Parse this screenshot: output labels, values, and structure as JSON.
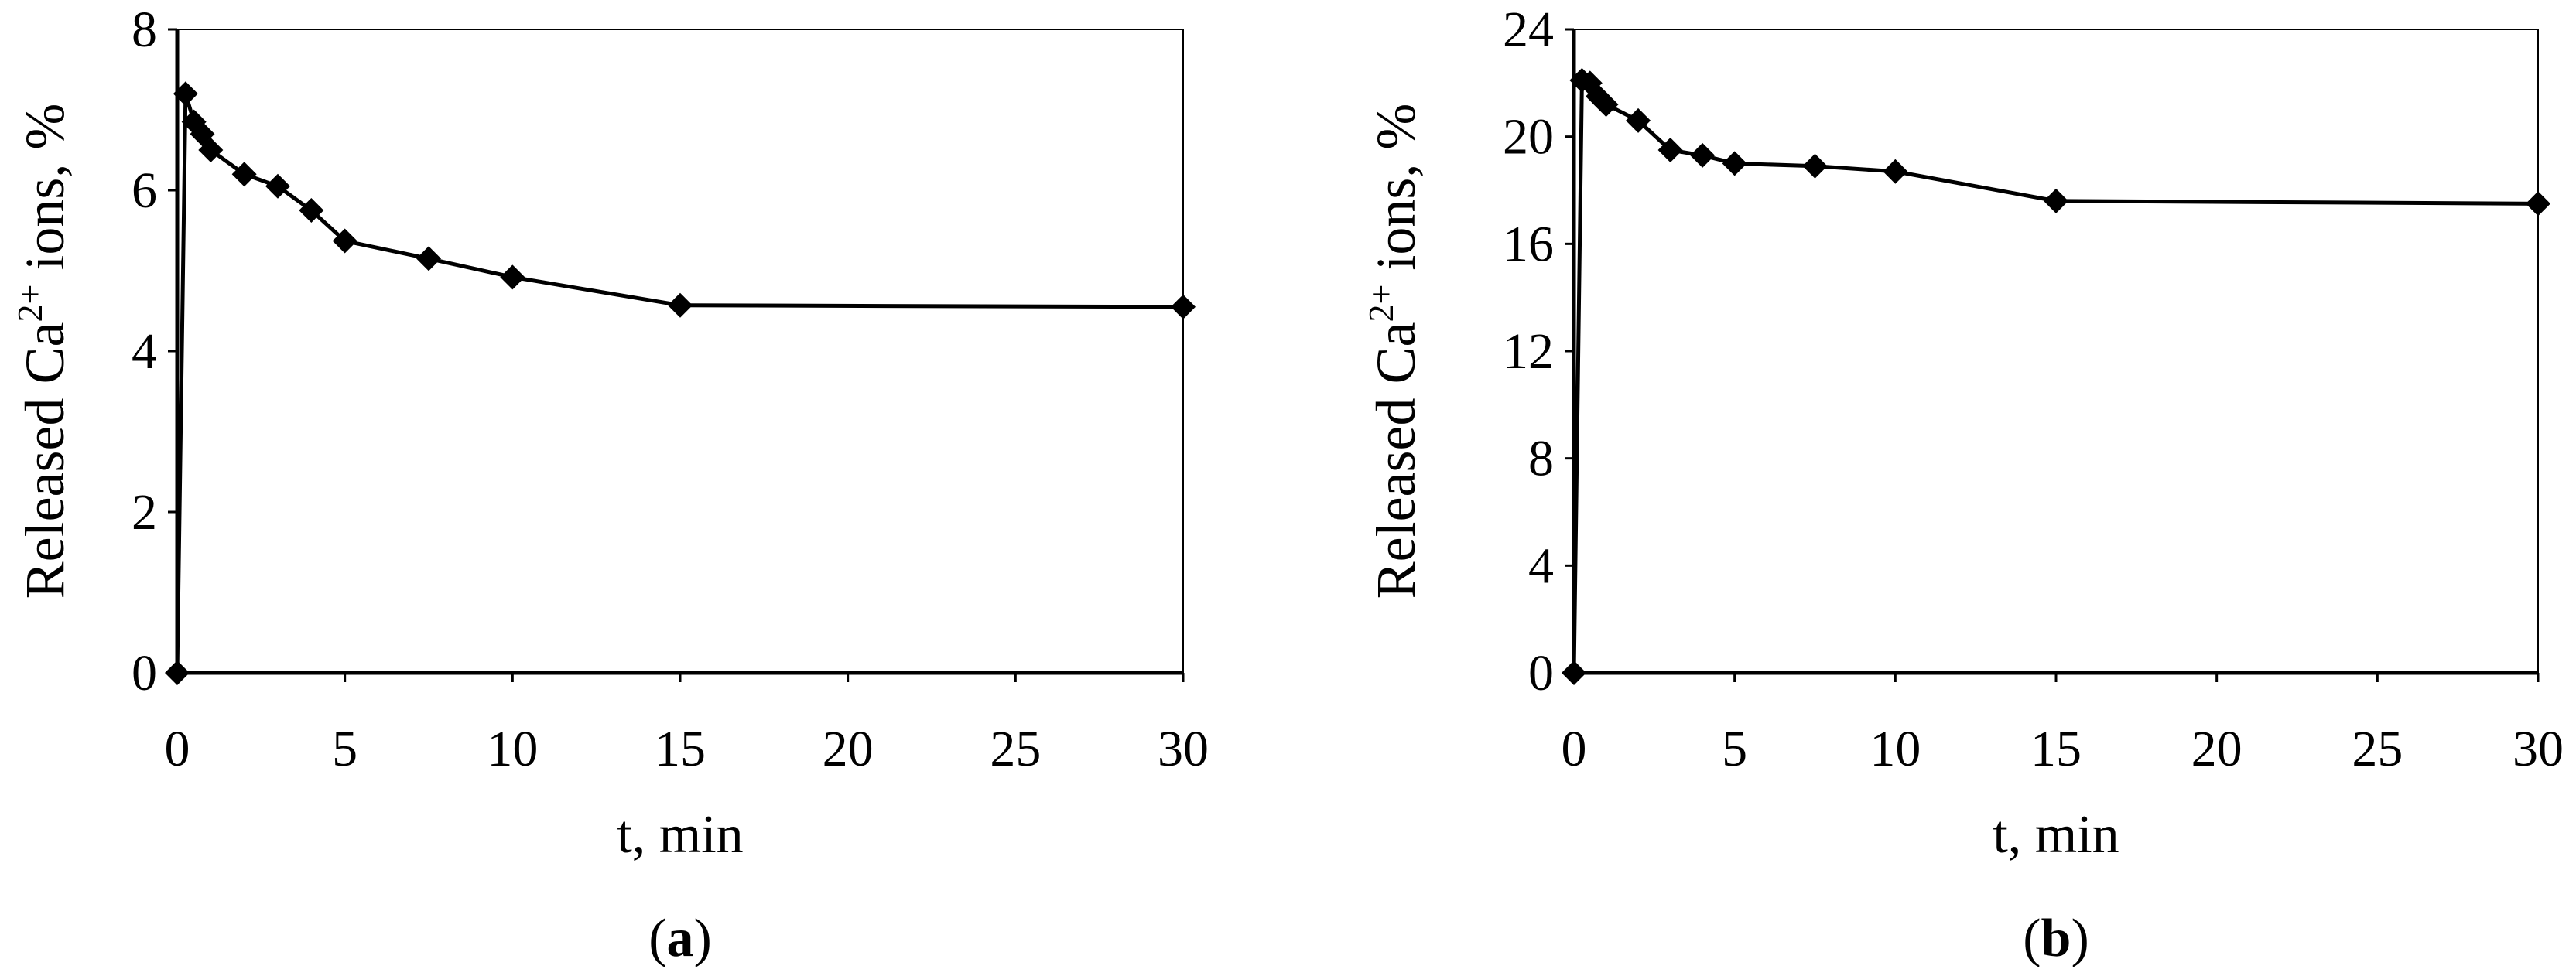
{
  "chart_data": [
    {
      "type": "line",
      "caption": [
        "(",
        "a",
        ")"
      ],
      "x_label": "t, min",
      "y_label": [
        "Released Ca",
        "2+",
        " ions, %"
      ],
      "x": [
        0,
        0.25,
        0.5,
        0.75,
        1,
        2,
        3,
        4,
        5,
        7.5,
        10,
        15,
        30
      ],
      "series": [
        {
          "color": "#000000",
          "values": [
            0,
            7.2,
            6.85,
            6.7,
            6.5,
            6.2,
            6.05,
            5.75,
            5.37,
            5.15,
            4.92,
            4.57,
            4.55
          ]
        }
      ],
      "xlim": [
        0,
        30
      ],
      "xticks": [
        0,
        5,
        10,
        15,
        20,
        25,
        30
      ],
      "ylim": [
        0,
        8
      ],
      "yticks": [
        0,
        2,
        4,
        6,
        8
      ]
    },
    {
      "type": "line",
      "caption": [
        "(",
        "b",
        ")"
      ],
      "x_label": "t, min",
      "y_label": [
        "Released Ca",
        "2+",
        " ions, %"
      ],
      "x": [
        0,
        0.25,
        0.5,
        0.75,
        1,
        2,
        3,
        4,
        5,
        7.5,
        10,
        15,
        30
      ],
      "series": [
        {
          "color": "#000000",
          "values": [
            0,
            22.1,
            22.0,
            21.5,
            21.2,
            20.6,
            19.5,
            19.3,
            19.0,
            18.9,
            18.7,
            17.6,
            17.5
          ]
        }
      ],
      "xlim": [
        0,
        30
      ],
      "xticks": [
        0,
        5,
        10,
        15,
        20,
        25,
        30
      ],
      "ylim": [
        0,
        24
      ],
      "yticks": [
        0,
        4,
        8,
        12,
        16,
        20,
        24
      ]
    }
  ]
}
